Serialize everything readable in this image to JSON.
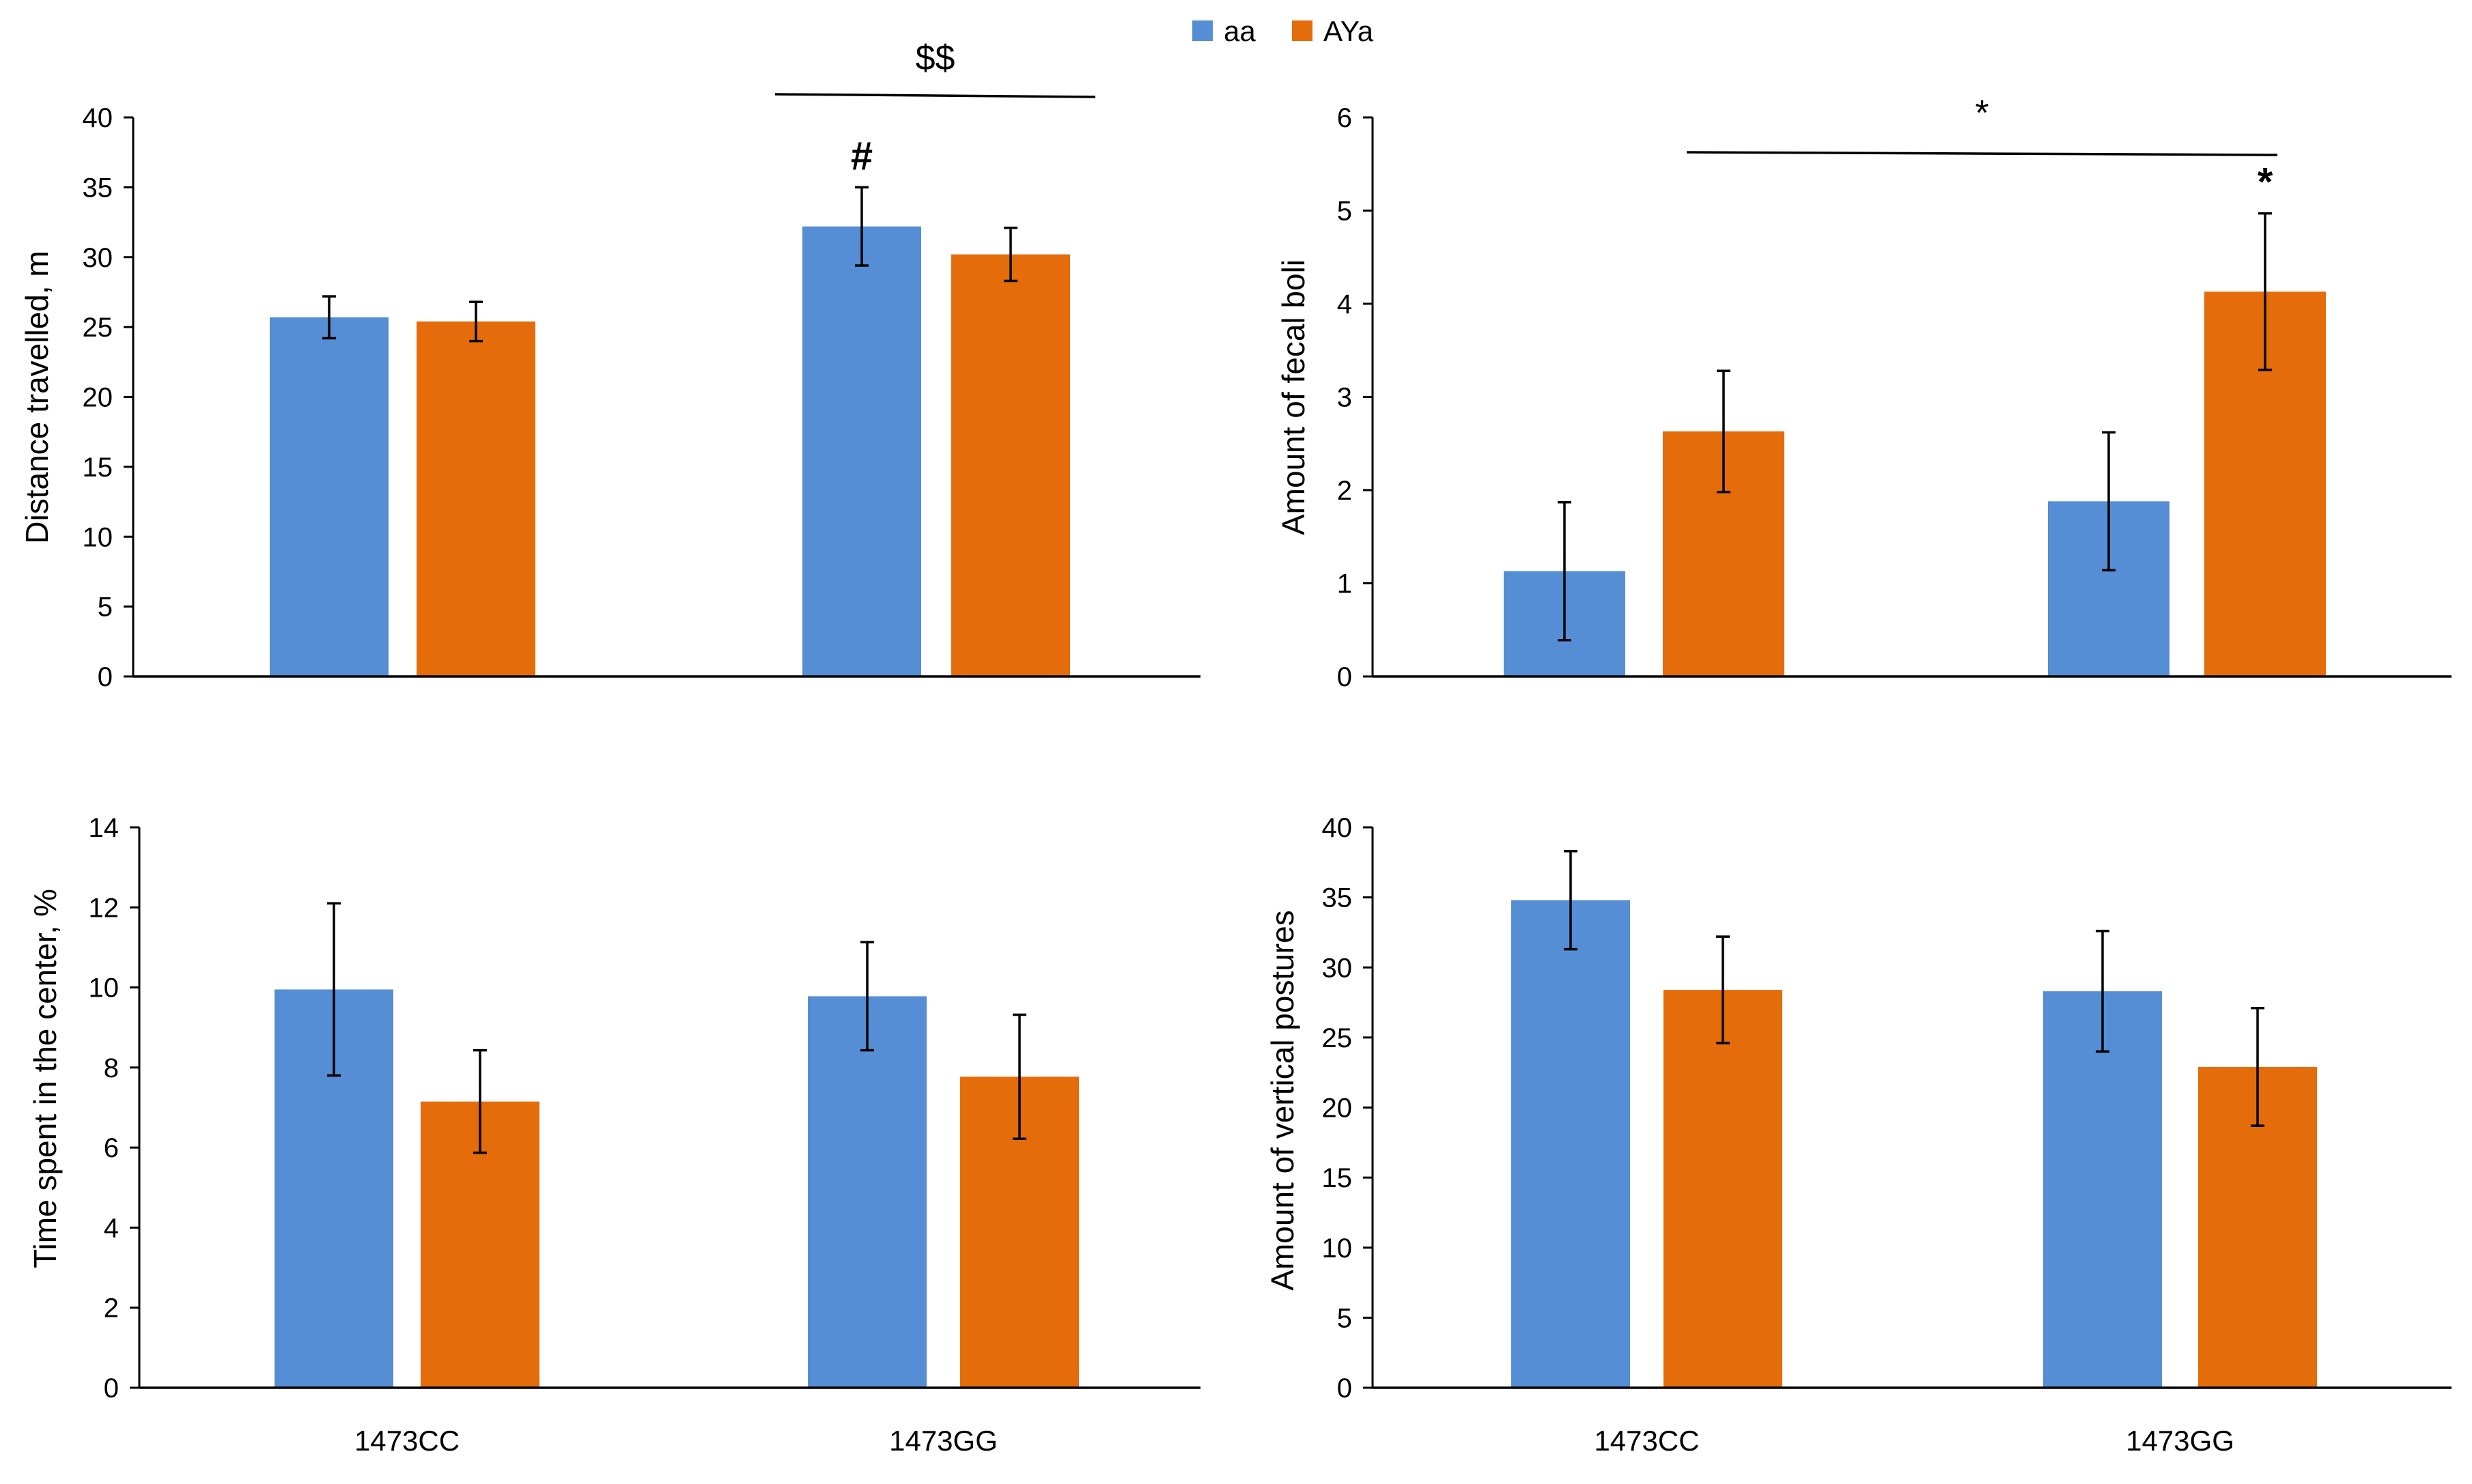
{
  "legend": {
    "items": [
      {
        "label": "aa",
        "color": "#558ED5"
      },
      {
        "label": "AYa",
        "color": "#E46C0A"
      }
    ],
    "placement": "top-center"
  },
  "colors": {
    "aa": "#558ED5",
    "AYa": "#E46C0A",
    "axis": "#000000"
  },
  "chart_data": [
    {
      "type": "bar",
      "title": "",
      "xlabel": "",
      "ylabel": "Distance travelled, m",
      "ylim": [
        0,
        40
      ],
      "yticks": [
        0,
        5,
        10,
        15,
        20,
        25,
        30,
        35,
        40
      ],
      "categories": [
        "1473CC",
        "1473GG"
      ],
      "show_category_labels": false,
      "grid": false,
      "series": [
        {
          "name": "aa",
          "values": [
            25.7,
            32.2
          ],
          "errors": [
            1.5,
            2.8
          ]
        },
        {
          "name": "AYa",
          "values": [
            25.4,
            30.2
          ],
          "errors": [
            1.4,
            1.9
          ]
        }
      ],
      "annotations": [
        {
          "text": "#",
          "category": 1,
          "series": 0
        },
        {
          "text": "$$",
          "span": [
            1,
            1
          ],
          "series_span": [
            0,
            1
          ]
        }
      ]
    },
    {
      "type": "bar",
      "title": "",
      "xlabel": "",
      "ylabel": "Amount of fecal boli",
      "ylim": [
        0,
        6
      ],
      "yticks": [
        0,
        1,
        2,
        3,
        4,
        5,
        6
      ],
      "categories": [
        "1473CC",
        "1473GG"
      ],
      "show_category_labels": false,
      "grid": false,
      "series": [
        {
          "name": "aa",
          "values": [
            1.13,
            1.88
          ],
          "errors": [
            0.74,
            0.74
          ]
        },
        {
          "name": "AYa",
          "values": [
            2.63,
            4.13
          ],
          "errors": [
            0.65,
            0.84
          ]
        }
      ],
      "annotations": [
        {
          "text": "*",
          "category": 1,
          "series": 1
        },
        {
          "text": "*",
          "span": [
            0,
            1
          ],
          "series_span": [
            1,
            1
          ]
        }
      ]
    },
    {
      "type": "bar",
      "title": "",
      "xlabel": "",
      "ylabel": "Time spent in the center, %",
      "ylim": [
        0,
        14
      ],
      "yticks": [
        0,
        2,
        4,
        6,
        8,
        10,
        12,
        14
      ],
      "categories": [
        "1473CC",
        "1473GG"
      ],
      "show_category_labels": true,
      "grid": false,
      "series": [
        {
          "name": "aa",
          "values": [
            9.95,
            9.78
          ],
          "errors": [
            2.15,
            1.35
          ]
        },
        {
          "name": "AYa",
          "values": [
            7.15,
            7.77
          ],
          "errors": [
            1.28,
            1.55
          ]
        }
      ],
      "annotations": []
    },
    {
      "type": "bar",
      "title": "",
      "xlabel": "",
      "ylabel": "Amount of vertical postures",
      "ylim": [
        0,
        40
      ],
      "yticks": [
        0,
        5,
        10,
        15,
        20,
        25,
        30,
        35,
        40
      ],
      "categories": [
        "1473CC",
        "1473GG"
      ],
      "show_category_labels": true,
      "grid": false,
      "series": [
        {
          "name": "aa",
          "values": [
            34.8,
            28.3
          ],
          "errors": [
            3.5,
            4.3
          ]
        },
        {
          "name": "AYa",
          "values": [
            28.4,
            22.9
          ],
          "errors": [
            3.8,
            4.2
          ]
        }
      ],
      "annotations": []
    }
  ]
}
